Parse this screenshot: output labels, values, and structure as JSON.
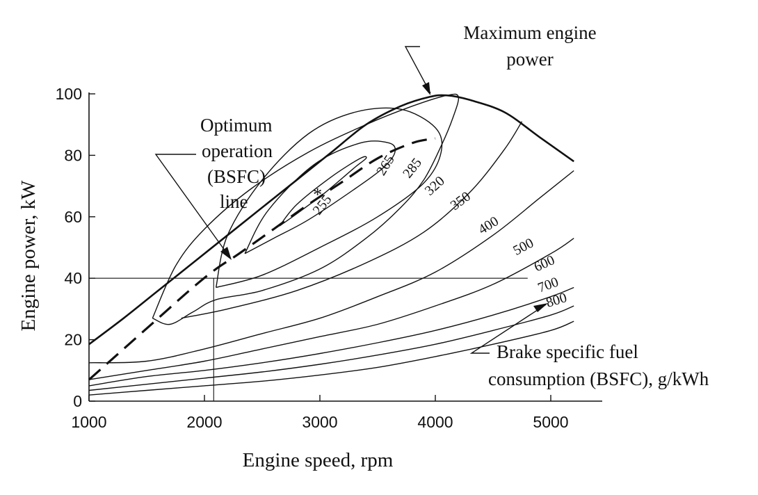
{
  "chart_data": {
    "type": "contour",
    "xlabel": "Engine speed, rpm",
    "ylabel": "Engine power, kW",
    "xlim": [
      1000,
      5400
    ],
    "ylim": [
      0,
      100
    ],
    "x_ticks": [
      1000,
      2000,
      3000,
      4000,
      5000
    ],
    "y_ticks": [
      0,
      20,
      40,
      60,
      80,
      100
    ],
    "grid": false,
    "max_power_curve": {
      "label": "Maximum engine power",
      "x": [
        1000,
        1300,
        1600,
        1900,
        2200,
        2500,
        2800,
        3100,
        3400,
        3700,
        3950,
        4100,
        4300,
        4600,
        4900,
        5200
      ],
      "y": [
        18.5,
        27,
        36,
        45,
        54,
        63,
        72,
        81,
        90,
        96,
        99,
        99.5,
        98,
        94,
        86,
        78
      ]
    },
    "optimum_line": {
      "label": "Optimum operation (BSFC) line",
      "x": [
        1000,
        1300,
        1600,
        1900,
        2100,
        2300,
        2600,
        2900,
        3200,
        3500,
        3800,
        4000
      ],
      "y": [
        7,
        17,
        27,
        37,
        43,
        48,
        56,
        64,
        71.5,
        79,
        84,
        85.5
      ]
    },
    "bsfc_contours": [
      {
        "label": "255",
        "x": [
          2650,
          2800,
          3050,
          3300,
          3400,
          3350,
          3100,
          2800,
          2650
        ],
        "y": [
          57,
          61,
          68,
          76,
          79,
          79,
          73,
          64,
          57
        ]
      },
      {
        "label": "265",
        "x": [
          2350,
          2600,
          2900,
          3300,
          3550,
          3650,
          3600,
          3350,
          2950,
          2550,
          2350
        ],
        "y": [
          48,
          53,
          59,
          69,
          76,
          81,
          84,
          84,
          77,
          62,
          48
        ]
      },
      {
        "label": "285",
        "x": [
          2100,
          2500,
          3000,
          3500,
          3900,
          4050,
          4000,
          3700,
          3300,
          2900,
          2500,
          2200,
          2100
        ],
        "y": [
          37,
          41,
          50,
          60,
          71,
          81,
          89,
          95,
          94,
          87,
          72,
          54,
          37
        ]
      },
      {
        "label": "320",
        "x": [
          1550,
          1700,
          1900,
          2100,
          2500,
          3000,
          3400,
          3700,
          3900,
          4050,
          4150,
          4200,
          4100,
          3800,
          3400,
          2900,
          2400,
          2000,
          1750,
          1550
        ],
        "y": [
          27,
          25,
          29,
          33,
          36,
          43,
          53,
          63,
          72,
          83,
          92,
          99,
          99.5,
          96,
          90,
          81,
          69,
          56,
          44,
          27
        ]
      },
      {
        "label": "350",
        "x": [
          1800,
          2200,
          2800,
          3400,
          3900,
          4300,
          4600,
          4750
        ],
        "y": [
          27,
          30,
          36,
          45,
          55,
          68,
          82,
          91
        ]
      },
      {
        "label": "400",
        "x": [
          1000,
          1500,
          2000,
          2500,
          3000,
          3500,
          4000,
          4500,
          4900,
          5200
        ],
        "y": [
          12.5,
          13,
          17,
          22,
          27,
          34,
          42,
          54,
          66,
          75
        ]
      },
      {
        "label": "500",
        "x": [
          1000,
          1500,
          2000,
          2500,
          3000,
          3500,
          4000,
          4500,
          5000,
          5200
        ],
        "y": [
          7,
          10,
          13,
          17,
          21,
          25,
          31,
          38,
          48,
          53
        ]
      },
      {
        "label": "600",
        "x": [
          1000,
          1500,
          2000,
          2500,
          3000,
          3500,
          4000,
          4500,
          5000,
          5200
        ],
        "y": [
          5,
          8,
          10,
          12.5,
          15.5,
          19,
          23,
          28,
          34,
          37
        ]
      },
      {
        "label": "700",
        "x": [
          1000,
          1500,
          2000,
          2500,
          3000,
          3500,
          4000,
          4500,
          5000,
          5200
        ],
        "y": [
          3.5,
          5.5,
          7.5,
          9.5,
          12,
          15,
          18.5,
          23,
          28,
          31
        ]
      },
      {
        "label": "800",
        "x": [
          1000,
          1500,
          2000,
          2500,
          3000,
          3500,
          4000,
          4500,
          5000,
          5200
        ],
        "y": [
          2,
          3.5,
          5,
          6.5,
          8.5,
          11,
          14.5,
          18.5,
          23,
          26
        ]
      }
    ],
    "marker": {
      "x": 2980,
      "y": 68,
      "symbol": "*"
    },
    "reference_point": {
      "x": 2080,
      "y": 40
    },
    "annotations": {
      "max_power": [
        "Maximum engine",
        "power"
      ],
      "optimum": [
        "Optimum",
        "operation",
        "(BSFC)",
        "line"
      ],
      "bsfc": [
        "Brake specific fuel",
        "consumption (BSFC),  g/kWh"
      ]
    }
  }
}
